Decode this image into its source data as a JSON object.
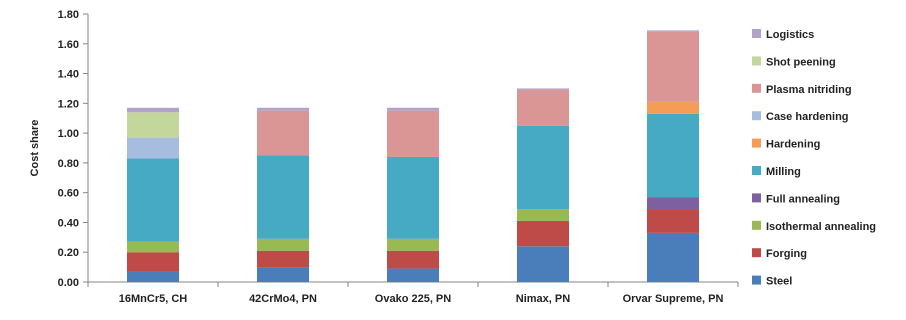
{
  "chart_data": {
    "type": "bar",
    "stacked": true,
    "title": "",
    "xlabel": "",
    "ylabel": "Cost share",
    "ylim": [
      0,
      1.8
    ],
    "yticks": [
      "0.00",
      "0.20",
      "0.40",
      "0.60",
      "0.80",
      "1.00",
      "1.20",
      "1.40",
      "1.60",
      "1.80"
    ],
    "grid": false,
    "legend_position": "right",
    "categories": [
      "16MnCr5, CH",
      "42CrMo4, PN",
      "Ovako 225, PN",
      "Nimax, PN",
      "Orvar Supreme, PN"
    ],
    "series": [
      {
        "name": "Steel",
        "color": "#4a7ebb",
        "values": [
          0.07,
          0.1,
          0.09,
          0.24,
          0.33
        ]
      },
      {
        "name": "Forging",
        "color": "#be4b48",
        "values": [
          0.13,
          0.11,
          0.12,
          0.17,
          0.16
        ]
      },
      {
        "name": "Isothermal annealing",
        "color": "#98b954",
        "values": [
          0.07,
          0.08,
          0.08,
          0.08,
          0.0
        ]
      },
      {
        "name": "Full annealing",
        "color": "#7d60a0",
        "values": [
          0.0,
          0.0,
          0.0,
          0.0,
          0.08
        ]
      },
      {
        "name": "Milling",
        "color": "#46aac5",
        "values": [
          0.56,
          0.56,
          0.55,
          0.56,
          0.56
        ]
      },
      {
        "name": "Hardening",
        "color": "#f59d56",
        "values": [
          0.0,
          0.0,
          0.0,
          0.0,
          0.08
        ]
      },
      {
        "name": "Case hardening",
        "color": "#a7bde0",
        "values": [
          0.14,
          0.0,
          0.0,
          0.0,
          0.0
        ]
      },
      {
        "name": "Plasma nitriding",
        "color": "#d99694",
        "values": [
          0.0,
          0.3,
          0.31,
          0.24,
          0.47
        ]
      },
      {
        "name": "Shot peening",
        "color": "#c3d69b",
        "values": [
          0.17,
          0.0,
          0.0,
          0.0,
          0.0
        ]
      },
      {
        "name": "Logistics",
        "color": "#b3a2c7",
        "values": [
          0.03,
          0.02,
          0.02,
          0.01,
          0.01
        ]
      }
    ],
    "legend_order": [
      "Logistics",
      "Shot peening",
      "Plasma nitriding",
      "Case hardening",
      "Hardening",
      "Milling",
      "Full annealing",
      "Isothermal annealing",
      "Forging",
      "Steel"
    ]
  }
}
